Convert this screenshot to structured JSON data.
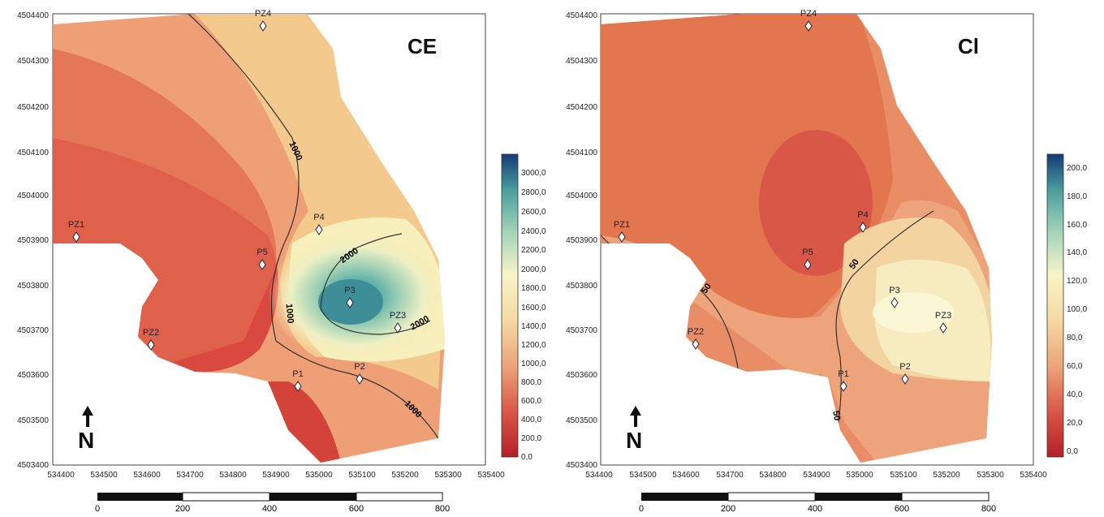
{
  "maps": [
    {
      "id": "ce",
      "title": "CE",
      "y_ticks": [
        "4504400",
        "4504300",
        "4504200",
        "4504100",
        "4504000",
        "4503900",
        "4503800",
        "4503700",
        "4503600",
        "4503500",
        "4503400"
      ],
      "x_ticks": [
        "534400",
        "534500",
        "534600",
        "534700",
        "534800",
        "534900",
        "535000",
        "535100",
        "535200",
        "535300",
        "535400"
      ],
      "contour_labels": [
        "1000",
        "2000",
        "1000",
        "2000",
        "1000"
      ],
      "wells": [
        "PZ4",
        "PZ1",
        "P4",
        "P5",
        "P3",
        "PZ3",
        "PZ2",
        "P2",
        "P1"
      ],
      "legend": {
        "min": 0,
        "max": 3000,
        "labels": [
          "3000,0",
          "2800,0",
          "2600,0",
          "2400,0",
          "2200,0",
          "2000,0",
          "1800,0",
          "1600,0",
          "1400,0",
          "1200,0",
          "1000,0",
          "800,0",
          "600,0",
          "400,0",
          "200,0",
          "0,0"
        ]
      },
      "scale_bar": [
        "0",
        "200",
        "400",
        "600",
        "800"
      ],
      "north_label": "N"
    },
    {
      "id": "cl",
      "title": "Cl",
      "y_ticks": [
        "4504400",
        "4504300",
        "4504200",
        "4504100",
        "4504000",
        "4503900",
        "4503800",
        "4503700",
        "4503600",
        "4503500",
        "4503400"
      ],
      "x_ticks": [
        "534400",
        "534500",
        "534600",
        "534700",
        "534800",
        "534900",
        "535000",
        "535100",
        "535200",
        "535300",
        "535400"
      ],
      "contour_labels": [
        "50",
        "50",
        "50"
      ],
      "wells": [
        "PZ4",
        "PZ1",
        "P4",
        "P5",
        "P3",
        "PZ3",
        "PZ2",
        "P2",
        "P1"
      ],
      "legend": {
        "min": 0,
        "max": 210,
        "labels": [
          "200,0",
          "180,0",
          "160,0",
          "140,0",
          "120,0",
          "100,0",
          "80,0",
          "60,0",
          "40,0",
          "20,0",
          "0,0"
        ]
      },
      "scale_bar": [
        "0",
        "200",
        "400",
        "600",
        "800"
      ],
      "north_label": "N"
    }
  ],
  "colors": {
    "low": "#c8262c",
    "mid_low": "#e07a5a",
    "mid": "#f2c890",
    "high": "#f8f3c0",
    "very_high": "#52a7a0",
    "max": "#133a78"
  }
}
